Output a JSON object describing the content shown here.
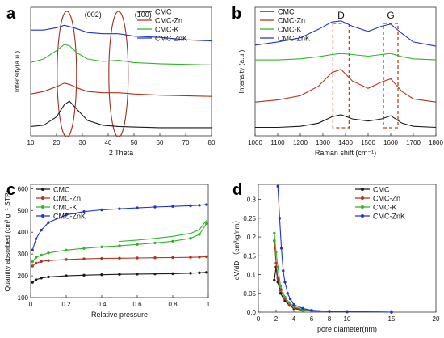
{
  "panels": [
    {
      "letter": "a",
      "legend": [
        "CMC",
        "CMC-Zn",
        "CMC-K",
        "CMC-ZnK"
      ],
      "annotations": [
        "(002)",
        "(100)"
      ]
    },
    {
      "letter": "b",
      "legend": [
        "CMC",
        "CMC-Zn",
        "CMC-K",
        "CMC-ZnK"
      ],
      "annotations": [
        "D",
        "G"
      ]
    },
    {
      "letter": "c",
      "legend": [
        "CMC",
        "CMC-Zn",
        "CMC-K",
        "CMC-ZnK"
      ]
    },
    {
      "letter": "d",
      "legend": [
        "CMC",
        "CMC-Zn",
        "CMC-K",
        "CMC-ZnK"
      ]
    }
  ],
  "colors": {
    "CMC": "#1a1a1a",
    "CMC-Zn": "#b5301c",
    "CMC-K": "#2fb52a",
    "CMC-ZnK": "#2233cc",
    "ellipse": "#a03020",
    "dashbox": "#c04010"
  },
  "chart_data": [
    {
      "type": "line",
      "title": "",
      "xlabel": "2 Theta",
      "ylabel": "Intensity(a.u.)",
      "xlim": [
        10,
        80
      ],
      "xticks": [
        10,
        20,
        30,
        40,
        50,
        60,
        70,
        80
      ],
      "y_tick_labels": "none",
      "legend_position": "top-right",
      "annotations": [
        "(002)",
        "(100)"
      ],
      "series": [
        {
          "name": "CMC",
          "offset": 0,
          "x": [
            10,
            15,
            20,
            23,
            25,
            28,
            32,
            38,
            44,
            50,
            60,
            70,
            80
          ],
          "y": [
            0.4,
            0.5,
            1.2,
            2.2,
            2.5,
            1.8,
            0.9,
            0.5,
            0.4,
            0.35,
            0.3,
            0.3,
            0.3
          ]
        },
        {
          "name": "CMC-Zn",
          "offset": 2.8,
          "x": [
            10,
            15,
            20,
            23,
            25,
            28,
            32,
            38,
            44,
            50,
            60,
            70,
            80
          ],
          "y": [
            0.3,
            0.5,
            0.9,
            1.2,
            1.1,
            0.8,
            0.5,
            0.4,
            0.4,
            0.3,
            0.2,
            0.15,
            0.1
          ]
        },
        {
          "name": "CMC-K",
          "offset": 5.4,
          "x": [
            10,
            15,
            20,
            23,
            25,
            28,
            32,
            38,
            44,
            50,
            60,
            70,
            80
          ],
          "y": [
            0.3,
            0.6,
            1.3,
            1.8,
            1.7,
            1.1,
            0.6,
            0.4,
            0.5,
            0.3,
            0.2,
            0.15,
            0.1
          ]
        },
        {
          "name": "CMC-ZnK",
          "offset": 7.8,
          "x": [
            10,
            15,
            20,
            23,
            25,
            28,
            32,
            38,
            44,
            50,
            60,
            70,
            80
          ],
          "y": [
            0.6,
            0.6,
            0.8,
            1.0,
            0.9,
            0.7,
            0.4,
            0.3,
            0.3,
            0.1,
            0.0,
            -0.2,
            -0.3
          ]
        }
      ]
    },
    {
      "type": "line",
      "title": "",
      "xlabel": "Raman shift (cm⁻¹)",
      "ylabel": "Intensity (a.u.)",
      "xlim": [
        1000,
        1800
      ],
      "xticks": [
        1000,
        1100,
        1200,
        1300,
        1400,
        1500,
        1600,
        1700,
        1800
      ],
      "y_tick_labels": "none",
      "legend_position": "top-left",
      "annotations": [
        "D",
        "G"
      ],
      "series": [
        {
          "name": "CMC",
          "offset": 0,
          "x": [
            1000,
            1100,
            1200,
            1280,
            1340,
            1380,
            1430,
            1500,
            1560,
            1600,
            1650,
            1700,
            1800
          ],
          "y": [
            0.2,
            0.2,
            0.3,
            0.6,
            1.2,
            1.4,
            1.0,
            0.8,
            1.0,
            1.3,
            0.6,
            0.3,
            0.2
          ]
        },
        {
          "name": "CMC-Zn",
          "offset": 2.5,
          "x": [
            1000,
            1100,
            1200,
            1280,
            1340,
            1380,
            1430,
            1500,
            1560,
            1600,
            1650,
            1700,
            1800
          ],
          "y": [
            0.1,
            0.3,
            0.7,
            1.6,
            2.9,
            3.2,
            2.1,
            1.4,
            2.0,
            2.3,
            1.1,
            0.4,
            0.1
          ]
        },
        {
          "name": "CMC-K",
          "offset": 6.4,
          "x": [
            1000,
            1100,
            1200,
            1280,
            1340,
            1380,
            1430,
            1500,
            1560,
            1600,
            1650,
            1700,
            1800
          ],
          "y": [
            0.2,
            0.2,
            0.3,
            0.5,
            0.7,
            0.8,
            0.7,
            0.55,
            0.7,
            0.8,
            0.5,
            0.3,
            0.2
          ]
        },
        {
          "name": "CMC-ZnK",
          "offset": 7.8,
          "x": [
            1000,
            1100,
            1200,
            1280,
            1340,
            1380,
            1430,
            1500,
            1560,
            1600,
            1650,
            1700,
            1800
          ],
          "y": [
            0.2,
            0.5,
            0.9,
            1.7,
            2.4,
            2.5,
            2.0,
            1.5,
            2.0,
            2.2,
            1.3,
            0.5,
            0.1
          ]
        }
      ]
    },
    {
      "type": "line",
      "title": "",
      "xlabel": "Relative pressure",
      "ylabel": "Quantity absorbed (cm³ g⁻¹ STP)",
      "xlim": [
        0.0,
        1.0
      ],
      "ylim": [
        100,
        620
      ],
      "xticks": [
        0.0,
        0.2,
        0.4,
        0.6,
        0.8,
        1.0
      ],
      "yticks": [
        100,
        200,
        300,
        400,
        500,
        600
      ],
      "legend_position": "top-left",
      "series": [
        {
          "name": "CMC",
          "x": [
            0.01,
            0.03,
            0.06,
            0.1,
            0.2,
            0.3,
            0.4,
            0.5,
            0.6,
            0.7,
            0.8,
            0.9,
            0.95,
            0.99
          ],
          "y": [
            170,
            182,
            190,
            195,
            200,
            203,
            205,
            207,
            208,
            209,
            210,
            212,
            214,
            216
          ]
        },
        {
          "name": "CMC-Zn",
          "x": [
            0.01,
            0.03,
            0.06,
            0.1,
            0.2,
            0.3,
            0.4,
            0.5,
            0.6,
            0.7,
            0.8,
            0.9,
            0.95,
            0.99
          ],
          "y": [
            245,
            258,
            266,
            270,
            275,
            278,
            280,
            281,
            282,
            283,
            284,
            285,
            286,
            288
          ]
        },
        {
          "name": "CMC-K",
          "x": [
            0.01,
            0.03,
            0.06,
            0.1,
            0.2,
            0.3,
            0.4,
            0.5,
            0.6,
            0.7,
            0.8,
            0.9,
            0.95,
            0.99
          ],
          "y": [
            265,
            285,
            295,
            305,
            318,
            326,
            333,
            338,
            344,
            351,
            359,
            372,
            390,
            440
          ],
          "desorption_y": [
            null,
            null,
            null,
            null,
            null,
            null,
            null,
            358,
            364,
            372,
            381,
            395,
            412,
            455
          ]
        },
        {
          "name": "CMC-ZnK",
          "x": [
            0.01,
            0.03,
            0.06,
            0.1,
            0.2,
            0.3,
            0.4,
            0.5,
            0.6,
            0.7,
            0.8,
            0.9,
            0.95,
            0.99
          ],
          "y": [
            318,
            370,
            410,
            445,
            480,
            495,
            503,
            508,
            512,
            516,
            519,
            522,
            524,
            527
          ]
        }
      ]
    },
    {
      "type": "line",
      "title": "",
      "xlabel": "pore diameter(nm)",
      "ylabel": "dV/dD （cm³/g/nm）",
      "xlim": [
        0,
        20
      ],
      "ylim": [
        0,
        0.34
      ],
      "xticks": [
        0,
        2,
        4,
        6,
        8,
        10,
        15,
        20
      ],
      "yticks": [
        0.0,
        0.05,
        0.1,
        0.15,
        0.2,
        0.25,
        0.3
      ],
      "legend_position": "top-right",
      "series": [
        {
          "name": "CMC",
          "x": [
            1.8,
            2.0,
            2.2,
            2.5,
            3.0,
            3.5,
            4,
            5,
            6,
            8,
            10,
            15
          ],
          "y": [
            0.085,
            0.12,
            0.08,
            0.05,
            0.03,
            0.018,
            0.01,
            0.005,
            0.003,
            0.002,
            0.001,
            0.0
          ]
        },
        {
          "name": "CMC-Zn",
          "x": [
            1.8,
            2.0,
            2.2,
            2.5,
            3.0,
            3.5,
            4,
            5,
            6,
            8,
            10,
            15
          ],
          "y": [
            0.19,
            0.13,
            0.09,
            0.06,
            0.035,
            0.02,
            0.012,
            0.006,
            0.003,
            0.002,
            0.001,
            0.0
          ]
        },
        {
          "name": "CMC-K",
          "x": [
            1.8,
            2.0,
            2.2,
            2.5,
            3.0,
            3.5,
            4,
            5,
            6,
            8,
            10,
            15
          ],
          "y": [
            0.21,
            0.16,
            0.12,
            0.07,
            0.04,
            0.025,
            0.015,
            0.007,
            0.004,
            0.002,
            0.001,
            0.0
          ]
        },
        {
          "name": "CMC-ZnK",
          "x": [
            2.2,
            2.4,
            2.6,
            2.8,
            3.0,
            3.3,
            3.6,
            4,
            5,
            6,
            8,
            10,
            15
          ],
          "y": [
            0.335,
            0.25,
            0.17,
            0.11,
            0.08,
            0.05,
            0.035,
            0.02,
            0.01,
            0.005,
            0.002,
            0.001,
            0.0
          ]
        }
      ]
    }
  ]
}
